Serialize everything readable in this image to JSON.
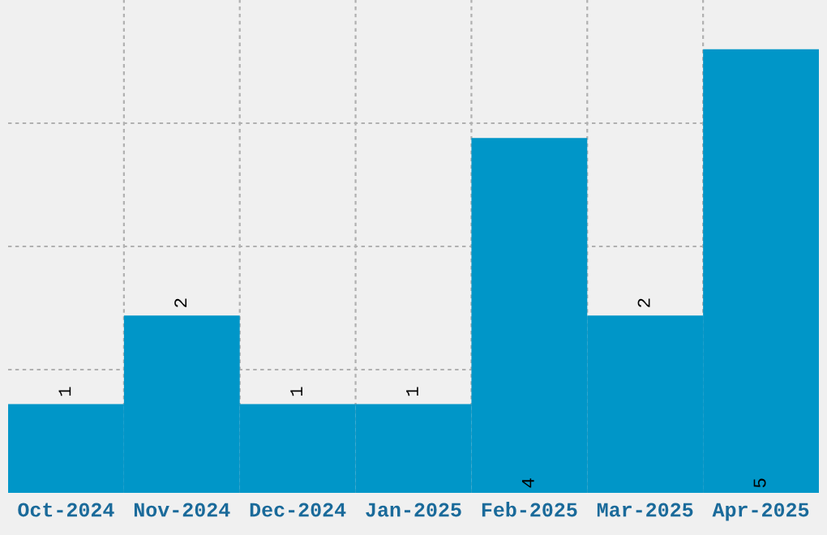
{
  "chart_data": {
    "type": "bar",
    "categories": [
      "Oct-2024",
      "Nov-2024",
      "Dec-2024",
      "Jan-2025",
      "Feb-2025",
      "Mar-2025",
      "Apr-2025"
    ],
    "values": [
      1,
      2,
      1,
      1,
      4,
      2,
      5
    ],
    "color": "#0096c8",
    "ylim": [
      0,
      5.556
    ],
    "yticks": [
      {
        "value": 1.389,
        "label": null
      },
      {
        "value": 2.778,
        "label": null
      },
      {
        "value": 4.167,
        "label": null
      }
    ],
    "tick_labels": "x",
    "data_labels": true,
    "grid": true,
    "legend": false
  }
}
